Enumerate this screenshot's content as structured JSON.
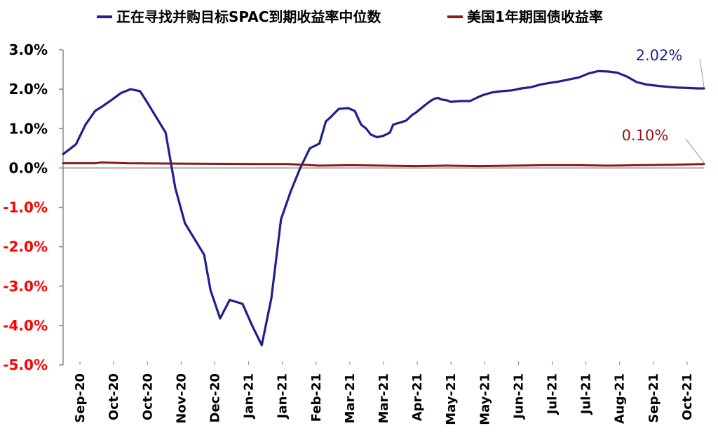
{
  "chart_data": {
    "type": "line",
    "title": "",
    "xlabel": "",
    "ylabel": "",
    "ylim": [
      -5.0,
      3.0
    ],
    "y_ticks": [
      "3.0%",
      "2.0%",
      "1.0%",
      "0.0%",
      "-1.0%",
      "-2.0%",
      "-3.0%",
      "-4.0%",
      "-5.0%"
    ],
    "y_tick_values": [
      3,
      2,
      1,
      0,
      -1,
      -2,
      -3,
      -4,
      -5
    ],
    "x_ticks": [
      "Sep-20",
      "Oct-20",
      "Oct-20",
      "Nov-20",
      "Dec-20",
      "Jan-21",
      "Jan-21",
      "Feb-21",
      "Mar-21",
      "Mar-21",
      "Apr-21",
      "May-21",
      "May-21",
      "Jun-21",
      "Jul-21",
      "Jul-21",
      "Aug-21",
      "Sep-21",
      "Oct-21"
    ],
    "x_range": [
      0,
      100
    ],
    "grid": false,
    "legend_position": "top",
    "negative_tick_color": "#ff0000",
    "positive_tick_color": "#000000",
    "series": [
      {
        "name": "正在寻找并购目标SPAC到期收益率中位数",
        "color": "#1f1f8f",
        "x": [
          0,
          2,
          3.5,
          5,
          6,
          7.5,
          9,
          10.5,
          12,
          13,
          14.5,
          16,
          17.5,
          19,
          20.5,
          22,
          23,
          24.5,
          26,
          28,
          29.5,
          31,
          32.5,
          34,
          35.5,
          37,
          38.5,
          40,
          41,
          41.8,
          43,
          44.5,
          45.5,
          46.5,
          47.3,
          48,
          49,
          50,
          51,
          51.5,
          52.5,
          53.5,
          54.5,
          55,
          56.5,
          57.5,
          58,
          58.5,
          59,
          59.8,
          60.5,
          62,
          63.5,
          64.5,
          65.5,
          67,
          68.5,
          70,
          71.5,
          73,
          74.5,
          76,
          77.5,
          79,
          80.5,
          82,
          83.5,
          85,
          86.5,
          88,
          89.5,
          91,
          92,
          93,
          94.5,
          96,
          97.5,
          99,
          100
        ],
        "values": [
          0.35,
          0.6,
          1.1,
          1.45,
          1.55,
          1.72,
          1.9,
          2.0,
          1.95,
          1.7,
          1.3,
          0.9,
          -0.5,
          -1.4,
          -1.8,
          -2.2,
          -3.1,
          -3.82,
          -3.35,
          -3.45,
          -4.0,
          -4.5,
          -3.3,
          -1.3,
          -0.6,
          0.0,
          0.5,
          0.62,
          1.18,
          1.3,
          1.5,
          1.52,
          1.45,
          1.1,
          1.0,
          0.85,
          0.78,
          0.82,
          0.9,
          1.1,
          1.15,
          1.2,
          1.35,
          1.4,
          1.6,
          1.72,
          1.76,
          1.78,
          1.74,
          1.72,
          1.68,
          1.7,
          1.7,
          1.78,
          1.85,
          1.92,
          1.95,
          1.97,
          2.02,
          2.05,
          2.12,
          2.16,
          2.2,
          2.25,
          2.3,
          2.4,
          2.46,
          2.45,
          2.42,
          2.32,
          2.18,
          2.12,
          2.1,
          2.08,
          2.06,
          2.04,
          2.03,
          2.02,
          2.02
        ]
      },
      {
        "name": "美国1年期国债收益率",
        "color": "#8b1a1a",
        "x": [
          0,
          5,
          6,
          10,
          20,
          30,
          35,
          40,
          45,
          50,
          55,
          60,
          65,
          70,
          75,
          80,
          85,
          90,
          95,
          100
        ],
        "values": [
          0.12,
          0.12,
          0.14,
          0.12,
          0.11,
          0.1,
          0.1,
          0.06,
          0.07,
          0.06,
          0.05,
          0.06,
          0.05,
          0.06,
          0.07,
          0.07,
          0.06,
          0.07,
          0.08,
          0.1
        ]
      }
    ],
    "annotations": [
      {
        "text": "2.02%",
        "series": 0,
        "color": "#1f1f8f"
      },
      {
        "text": "0.10%",
        "series": 1,
        "color": "#8b1a1a"
      }
    ]
  }
}
